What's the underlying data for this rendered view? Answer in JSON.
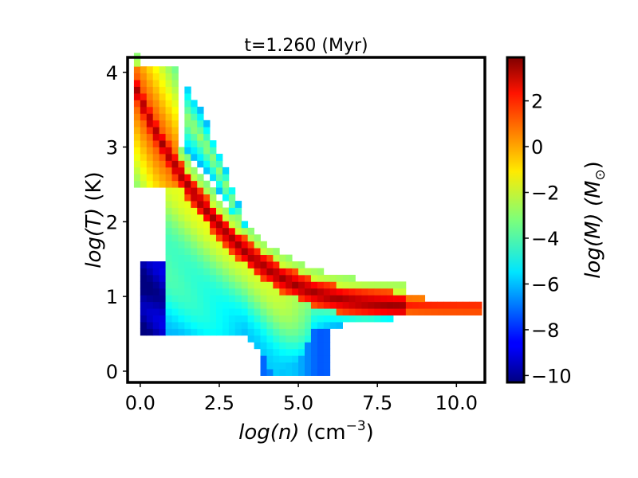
{
  "chart_data": {
    "type": "heatmap",
    "title": "t=1.260 (Myr)",
    "xlabel": {
      "main": "log(n)",
      "unit": " (cm",
      "sup": "−3",
      "close": ")"
    },
    "ylabel": {
      "main": "log(T)",
      "unit": " (K)"
    },
    "colorbar_label": "log(M) (M",
    "colorbar_sub": "⊙",
    "xlim": [
      -0.4,
      10.9
    ],
    "ylim": [
      -0.15,
      4.2
    ],
    "clim": [
      -10.3,
      3.9
    ],
    "xticks": [
      {
        "value": 0.0,
        "label": "0.0"
      },
      {
        "value": 2.5,
        "label": "2.5"
      },
      {
        "value": 5.0,
        "label": "5.0"
      },
      {
        "value": 7.5,
        "label": "7.5"
      },
      {
        "value": 10.0,
        "label": "10.0"
      }
    ],
    "yticks": [
      {
        "value": 0,
        "label": "0"
      },
      {
        "value": 1,
        "label": "1"
      },
      {
        "value": 2,
        "label": "2"
      },
      {
        "value": 3,
        "label": "3"
      },
      {
        "value": 4,
        "label": "4"
      }
    ],
    "cticks": [
      {
        "value": 2,
        "label": "2"
      },
      {
        "value": 0,
        "label": "0"
      },
      {
        "value": -2,
        "label": "−2"
      },
      {
        "value": -4,
        "label": "−4"
      },
      {
        "value": -6,
        "label": "−6"
      },
      {
        "value": -8,
        "label": "−8"
      },
      {
        "value": -10,
        "label": "−10"
      }
    ],
    "colormap": "jet",
    "grid": false
  }
}
